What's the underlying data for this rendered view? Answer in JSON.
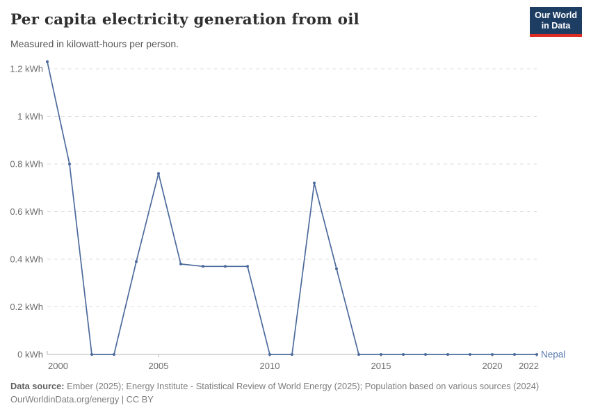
{
  "header": {
    "title": "Per capita electricity generation from oil",
    "subtitle": "Measured in kilowatt-hours per person.",
    "logo_line1": "Our World",
    "logo_line2": "in Data"
  },
  "chart_data": {
    "type": "line",
    "title": "Per capita electricity generation from oil",
    "xlabel": "",
    "ylabel": "kilowatt-hours per person",
    "xlim": [
      2000,
      2022
    ],
    "ylim": [
      0,
      1.2
    ],
    "grid": "horizontal-dashed",
    "legend_position": "end-of-line-label",
    "x": [
      2000,
      2001,
      2002,
      2003,
      2004,
      2005,
      2006,
      2007,
      2008,
      2009,
      2010,
      2011,
      2012,
      2013,
      2014,
      2015,
      2016,
      2017,
      2018,
      2019,
      2020,
      2021,
      2022
    ],
    "series": [
      {
        "name": "Nepal",
        "color": "#4c6a9c",
        "label_color": "#5879b0",
        "values": [
          1.23,
          0.8,
          0,
          0,
          0.39,
          0.76,
          0.38,
          0.37,
          0.37,
          0.37,
          0,
          0,
          0.72,
          0.36,
          0,
          0,
          0,
          0,
          0,
          0,
          0,
          0,
          0
        ]
      }
    ],
    "y_ticks": [
      {
        "value": 0,
        "label": "0 kWh"
      },
      {
        "value": 0.2,
        "label": "0.2 kWh"
      },
      {
        "value": 0.4,
        "label": "0.4 kWh"
      },
      {
        "value": 0.6,
        "label": "0.6 kWh"
      },
      {
        "value": 0.8,
        "label": "0.8 kWh"
      },
      {
        "value": 1,
        "label": "1 kWh"
      },
      {
        "value": 1.2,
        "label": "1.2 kWh"
      }
    ],
    "x_ticks": [
      {
        "value": 2000,
        "label": "2000"
      },
      {
        "value": 2005,
        "label": "2005"
      },
      {
        "value": 2010,
        "label": "2010"
      },
      {
        "value": 2015,
        "label": "2015"
      },
      {
        "value": 2020,
        "label": "2020"
      },
      {
        "value": 2022,
        "label": "2022"
      }
    ]
  },
  "footer": {
    "sources_label": "Data source:",
    "sources_text": " Ember (2025); Energy Institute - Statistical Review of World Energy (2025); Population based on various sources (2024)",
    "license_line": "OurWorldinData.org/energy | CC BY"
  },
  "colors": {
    "line": "#4c6a9c",
    "gridline": "#dcdcdc",
    "axis": "#b5b5b5",
    "tick_text": "#6b6b6b",
    "logo_bg": "#1d3d63",
    "logo_bar": "#dc2c22"
  }
}
